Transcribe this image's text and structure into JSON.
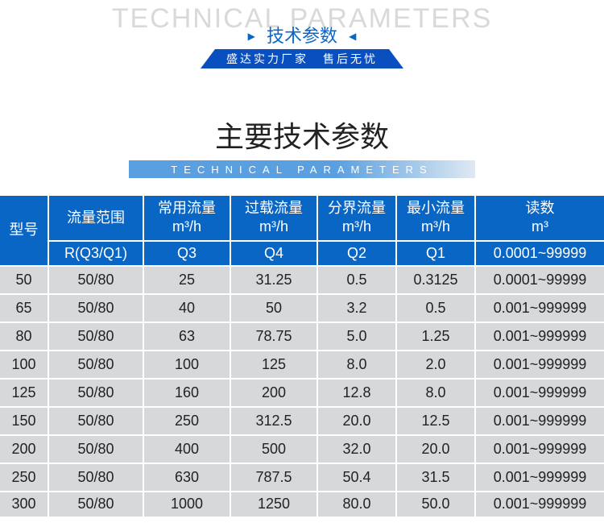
{
  "header": {
    "bg_title": "TECHNICAL PARAMETERS",
    "subtitle": "技术参数",
    "banner_left": "盛达实力厂家",
    "banner_right": "售后无忧"
  },
  "section": {
    "title_cn": "主要技术参数",
    "title_en": "TECHNICAL  PARAMETERS"
  },
  "table": {
    "model_label": "型号",
    "top": [
      {
        "line1": "流量范围",
        "line2": ""
      },
      {
        "line1": "常用流量",
        "line2": "m³/h"
      },
      {
        "line1": "过载流量",
        "line2": "m³/h"
      },
      {
        "line1": "分界流量",
        "line2": "m³/h"
      },
      {
        "line1": "最小流量",
        "line2": "m³/h"
      },
      {
        "line1": "读数",
        "line2": "m³"
      }
    ],
    "sub": [
      "R(Q3/Q1)",
      "Q3",
      "Q4",
      "Q2",
      "Q1",
      "0.0001~99999"
    ],
    "rows": [
      [
        "50",
        "50/80",
        "25",
        "31.25",
        "0.5",
        "0.3125",
        "0.0001~99999"
      ],
      [
        "65",
        "50/80",
        "40",
        "50",
        "3.2",
        "0.5",
        "0.001~999999"
      ],
      [
        "80",
        "50/80",
        "63",
        "78.75",
        "5.0",
        "1.25",
        "0.001~999999"
      ],
      [
        "100",
        "50/80",
        "100",
        "125",
        "8.0",
        "2.0",
        "0.001~999999"
      ],
      [
        "125",
        "50/80",
        "160",
        "200",
        "12.8",
        "8.0",
        "0.001~999999"
      ],
      [
        "150",
        "50/80",
        "250",
        "312.5",
        "20.0",
        "12.5",
        "0.001~999999"
      ],
      [
        "200",
        "50/80",
        "400",
        "500",
        "32.0",
        "20.0",
        "0.001~999999"
      ],
      [
        "250",
        "50/80",
        "630",
        "787.5",
        "50.4",
        "31.5",
        "0.001~999999"
      ],
      [
        "300",
        "50/80",
        "1000",
        "1250",
        "80.0",
        "50.0",
        "0.001~999999"
      ]
    ]
  },
  "style": {
    "brand_blue": "#0a66c4",
    "banner_blue": "#0a4fbf",
    "row_bg": "#d6d8da",
    "bg_title_color": "#d8d9da",
    "bar_gradient_from": "#5aa0e0",
    "bar_gradient_to": "#dfe9f2"
  }
}
